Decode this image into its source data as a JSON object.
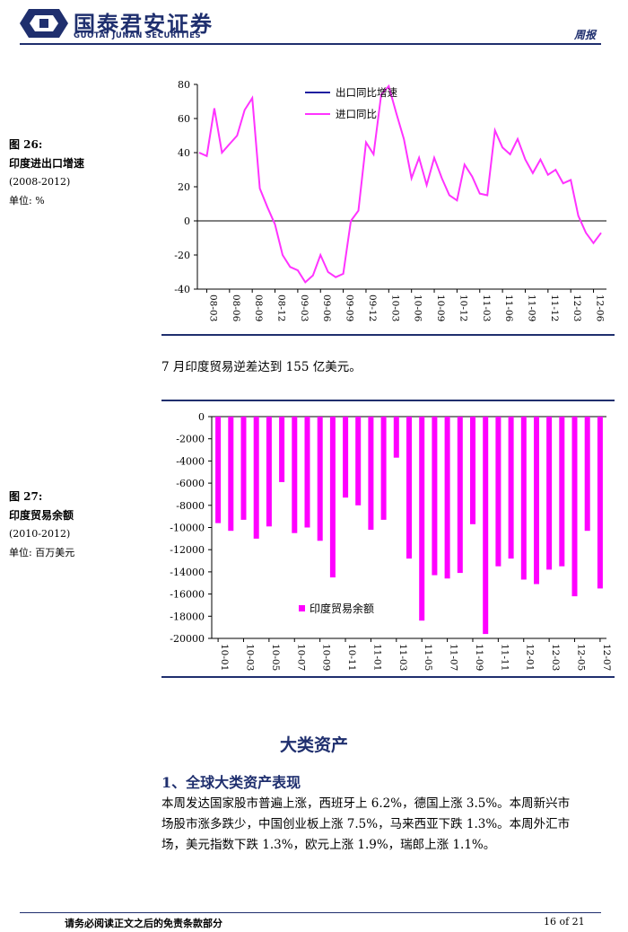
{
  "header": {
    "company_cn": "国泰君安证券",
    "company_en": "GUOTAI JUNAN SECURITIES",
    "report_type": "周报"
  },
  "figure26": {
    "label": "图 26:",
    "title": "印度进出口增速",
    "period": "(2008-2012)",
    "unit": "单位: %"
  },
  "figure27": {
    "label": "图 27:",
    "title": "印度贸易余额",
    "period": "(2010-2012)",
    "unit": "单位: 百万美元"
  },
  "between_text": "7 月印度贸易逆差达到 155 亿美元。",
  "section": {
    "title": "大类资产",
    "subsection": "1、全球大类资产表现",
    "paragraph_lines": [
      "本周发达国家股市普遍上涨，西班牙上 6.2%，德国上涨 3.5%。本周新兴市",
      "场股市涨多跌少，中国创业板上涨 7.5%，马来西亚下跌 1.3%。本周外汇市",
      "场，美元指数下跌 1.3%，欧元上涨 1.9%，瑞郎上涨 1.1%。"
    ]
  },
  "footer": {
    "disclaimer": "请务必阅读正文之后的免责条款部分",
    "page": "16 of 21"
  },
  "colors": {
    "navy": "#1f2f6e",
    "magenta": "#ff00ff",
    "import_line": "#ff33ff",
    "export_line": "#1f1fa0"
  },
  "chart_data": [
    {
      "type": "line",
      "ylim": [
        -40,
        80
      ],
      "yticks": [
        80,
        60,
        40,
        20,
        0,
        -20,
        -40
      ],
      "xtick_labels": [
        "08-03",
        "08-06",
        "08-09",
        "08-12",
        "09-03",
        "09-06",
        "09-09",
        "09-12",
        "10-03",
        "10-06",
        "10-09",
        "10-12",
        "11-03",
        "11-06",
        "11-09",
        "11-12",
        "12-03",
        "12-06"
      ],
      "x_start": "08-02",
      "legend": [
        "出口同比增速",
        "进口同比"
      ],
      "legend_position": "top-center",
      "series": [
        {
          "name": "进口同比",
          "values": [
            40,
            38,
            66,
            40,
            45,
            50,
            65,
            72,
            19,
            8,
            -2,
            -20,
            -27,
            -29,
            -36,
            -32,
            -20,
            -30,
            -33,
            -31,
            0,
            6,
            46,
            39,
            74,
            79,
            63,
            48,
            25,
            37,
            21,
            37,
            25,
            15,
            12,
            33,
            26,
            16,
            15,
            53,
            43,
            39,
            48,
            36,
            28,
            36,
            27,
            30,
            22,
            24,
            3,
            -7,
            -13,
            -7
          ]
        }
      ]
    },
    {
      "type": "bar",
      "ylim": [
        -20000,
        0
      ],
      "yticks": [
        0,
        -2000,
        -4000,
        -6000,
        -8000,
        -10000,
        -12000,
        -14000,
        -16000,
        -18000,
        -20000
      ],
      "categories": [
        "10-01",
        "10-02",
        "10-03",
        "10-04",
        "10-05",
        "10-06",
        "10-07",
        "10-08",
        "10-09",
        "10-10",
        "10-11",
        "10-12",
        "11-01",
        "11-02",
        "11-03",
        "11-04",
        "11-05",
        "11-06",
        "11-07",
        "11-08",
        "11-09",
        "11-10",
        "11-11",
        "11-12",
        "12-01",
        "12-02",
        "12-03",
        "12-04",
        "12-05",
        "12-06",
        "12-07"
      ],
      "xtick_labels": [
        "10-01",
        "10-03",
        "10-05",
        "10-07",
        "10-09",
        "10-11",
        "11-01",
        "11-03",
        "11-05",
        "11-07",
        "11-09",
        "11-11",
        "12-01",
        "12-03",
        "12-05",
        "12-07"
      ],
      "series": [
        {
          "name": "印度贸易余额",
          "values": [
            -9600,
            -10300,
            -9300,
            -11000,
            -9900,
            -5900,
            -10500,
            -10000,
            -11200,
            -14500,
            -7300,
            -8000,
            -10200,
            -9300,
            -3700,
            -12800,
            -18400,
            -14300,
            -14600,
            -14100,
            -9700,
            -19600,
            -13500,
            -12800,
            -14700,
            -15100,
            -13800,
            -13500,
            -16200,
            -10300,
            -15500
          ]
        }
      ],
      "legend_position": "bottom-center"
    }
  ]
}
